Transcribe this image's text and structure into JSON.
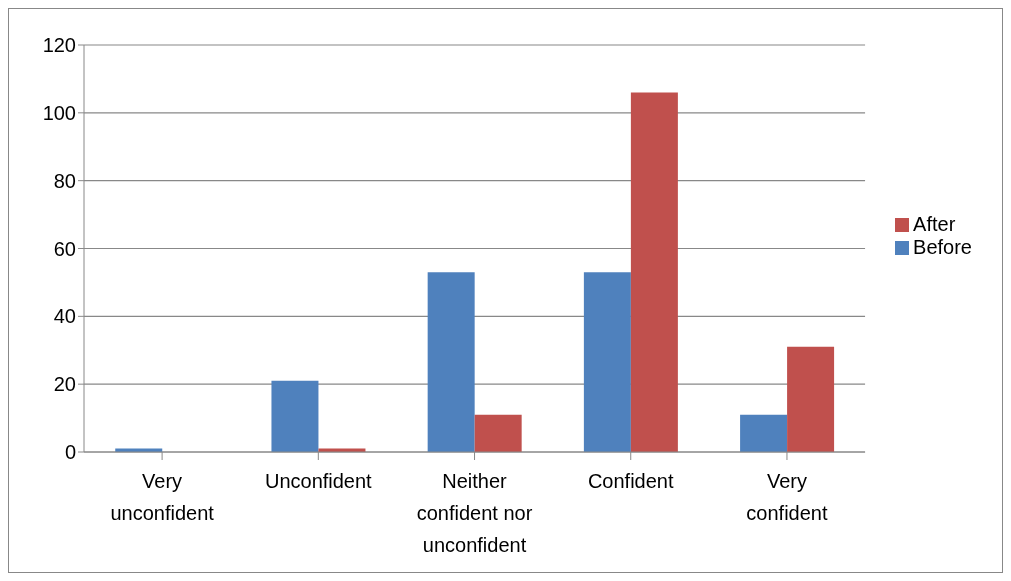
{
  "chart_data": {
    "type": "bar",
    "categories": [
      "Very unconfident",
      "Unconfident",
      "Neither confident nor unconfident",
      "Confident",
      "Very confident"
    ],
    "series": [
      {
        "name": "Before",
        "color": "#4f81bd",
        "values": [
          1,
          21,
          53,
          53,
          11
        ]
      },
      {
        "name": "After",
        "color": "#c0504d",
        "values": [
          0,
          1,
          11,
          106,
          31
        ]
      }
    ],
    "ylim": [
      0,
      120
    ],
    "yticks": [
      0,
      20,
      40,
      60,
      80,
      100,
      120
    ],
    "grid": "y",
    "legend": "right"
  }
}
